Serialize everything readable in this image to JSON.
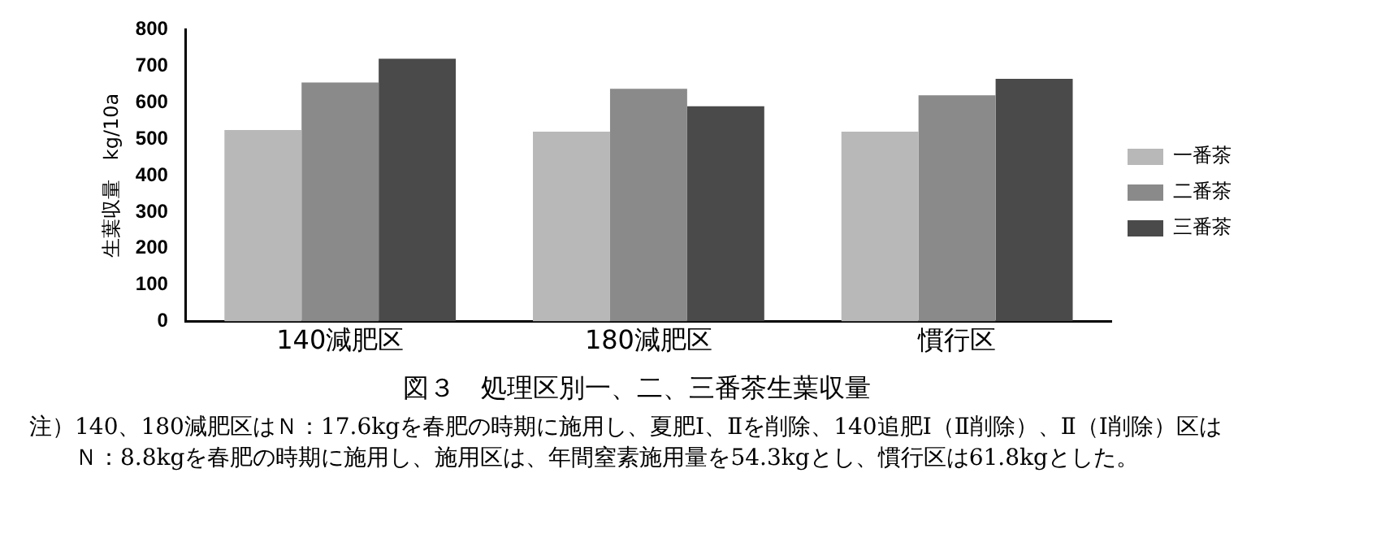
{
  "chart_data": {
    "type": "bar",
    "title": "図３　処理区別一、二、三番茶生葉収量",
    "ylabel": "生葉収量　kg/10a",
    "categories": [
      "140減肥区",
      "180減肥区",
      "慣行区"
    ],
    "series": [
      {
        "name": "一番茶",
        "color": "#b8b8b8",
        "values": [
          525,
          520,
          520
        ]
      },
      {
        "name": "二番茶",
        "color": "#8a8a8a",
        "values": [
          655,
          638,
          620
        ]
      },
      {
        "name": "三番茶",
        "color": "#4a4a4a",
        "values": [
          720,
          590,
          665
        ]
      }
    ],
    "ylim": [
      0,
      800
    ],
    "yticks": [
      0,
      100,
      200,
      300,
      400,
      500,
      600,
      700,
      800
    ],
    "grid": false,
    "legend": "right",
    "annotations": [
      "注）140、180減肥区はＮ：17.6kgを春肥の時期に施用し、夏肥Ⅰ、Ⅱを削除、140追肥Ⅰ（Ⅱ削除）、Ⅱ（Ⅰ削除）区はＮ：8.8kgを春肥の時期に施用し、施用区は、年間窒素施用量を54.3kgとし、慣行区は61.8kgとした。"
    ]
  }
}
